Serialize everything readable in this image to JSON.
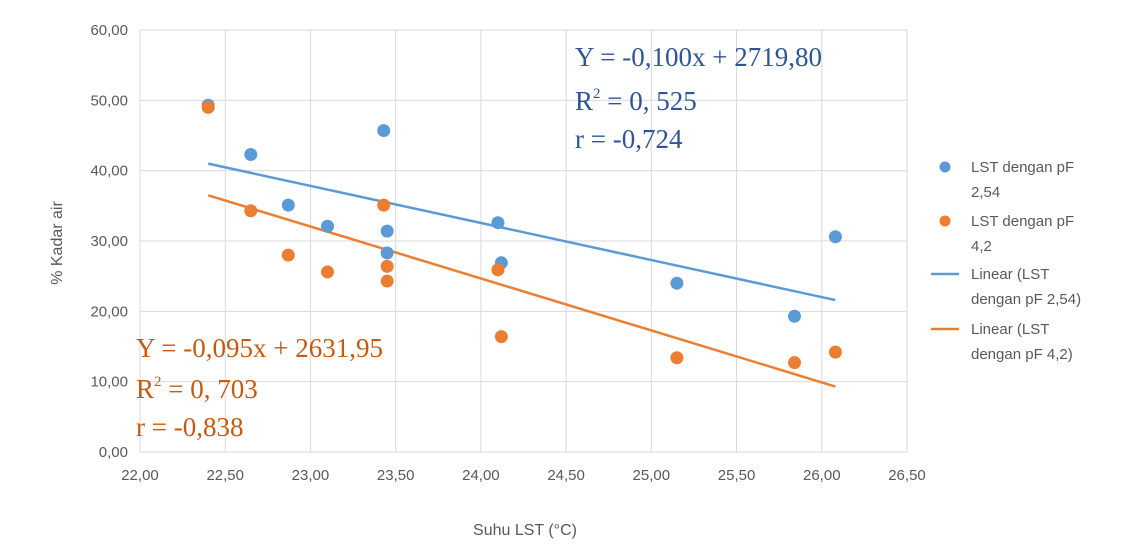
{
  "chart_data": {
    "type": "scatter",
    "title": "",
    "xlabel": "Suhu LST (°C)",
    "ylabel": "% Kadar air",
    "xlim": [
      22.0,
      26.5
    ],
    "ylim": [
      0,
      60
    ],
    "x_ticks": [
      22,
      22.5,
      23,
      23.5,
      24,
      24.5,
      25,
      25.5,
      26,
      26.5
    ],
    "x_tick_labels": [
      "22,00",
      "22,50",
      "23,00",
      "23,50",
      "24,00",
      "24,50",
      "25,00",
      "25,50",
      "26,00",
      "26,50"
    ],
    "y_ticks": [
      0,
      10,
      20,
      30,
      40,
      50,
      60
    ],
    "y_tick_labels": [
      "0,00",
      "10,00",
      "20,00",
      "30,00",
      "40,00",
      "50,00",
      "60,00"
    ],
    "grid": "horizontal and vertical",
    "legend_position": "right",
    "series": [
      {
        "name": "LST dengan pF 2,54",
        "color": "#5B9BD5",
        "points": [
          [
            22.4,
            49.3
          ],
          [
            22.65,
            42.3
          ],
          [
            22.87,
            35.1
          ],
          [
            23.1,
            32.1
          ],
          [
            23.43,
            45.7
          ],
          [
            23.45,
            31.4
          ],
          [
            23.45,
            28.3
          ],
          [
            24.1,
            32.6
          ],
          [
            24.12,
            26.9
          ],
          [
            25.15,
            24.0
          ],
          [
            25.84,
            19.3
          ],
          [
            26.08,
            30.6
          ]
        ]
      },
      {
        "name": "LST dengan pF 4,2",
        "color": "#ED7D31",
        "points": [
          [
            22.4,
            49.0
          ],
          [
            22.65,
            34.3
          ],
          [
            22.87,
            28.0
          ],
          [
            23.1,
            25.6
          ],
          [
            23.43,
            35.1
          ],
          [
            23.45,
            26.4
          ],
          [
            23.45,
            24.3
          ],
          [
            24.1,
            25.9
          ],
          [
            24.12,
            16.4
          ],
          [
            25.15,
            13.4
          ],
          [
            25.84,
            12.7
          ],
          [
            26.08,
            14.2
          ]
        ]
      },
      {
        "name": "Linear (LST dengan pF 2,54)",
        "color": "#5B9BD5",
        "trend_line": [
          [
            22.4,
            41.0
          ],
          [
            26.08,
            21.6
          ]
        ]
      },
      {
        "name": "Linear (LST dengan pF 4,2)",
        "color": "#ED7D31",
        "trend_line": [
          [
            22.4,
            36.5
          ],
          [
            26.08,
            9.3
          ]
        ]
      }
    ],
    "legend": [
      {
        "lines": [
          "LST dengan pF",
          "2,54"
        ],
        "marker": "dot",
        "color": "#5B9BD5"
      },
      {
        "lines": [
          "LST dengan pF",
          "4,2"
        ],
        "marker": "dot",
        "color": "#ED7D31"
      },
      {
        "lines": [
          "Linear (LST",
          "dengan pF 2,54)"
        ],
        "marker": "line",
        "color": "#5B9BD5"
      },
      {
        "lines": [
          "Linear (LST",
          "dengan pF 4,2)"
        ],
        "marker": "line",
        "color": "#ED7D31"
      }
    ],
    "annotations": {
      "blue": {
        "eq": "Y = -0,100x + 2719,80",
        "r2_prefix": "R",
        "r2_exp": "2",
        "r2_value": " = 0, 525",
        "r": "r = -0,724",
        "color": "#2F5597"
      },
      "orange": {
        "eq": "Y = -0,095x + 2631,95",
        "r2_prefix": "R",
        "r2_exp": "2",
        "r2_value": " = 0, 703",
        "r": "r = -0,838",
        "color": "#C55A11"
      }
    }
  }
}
